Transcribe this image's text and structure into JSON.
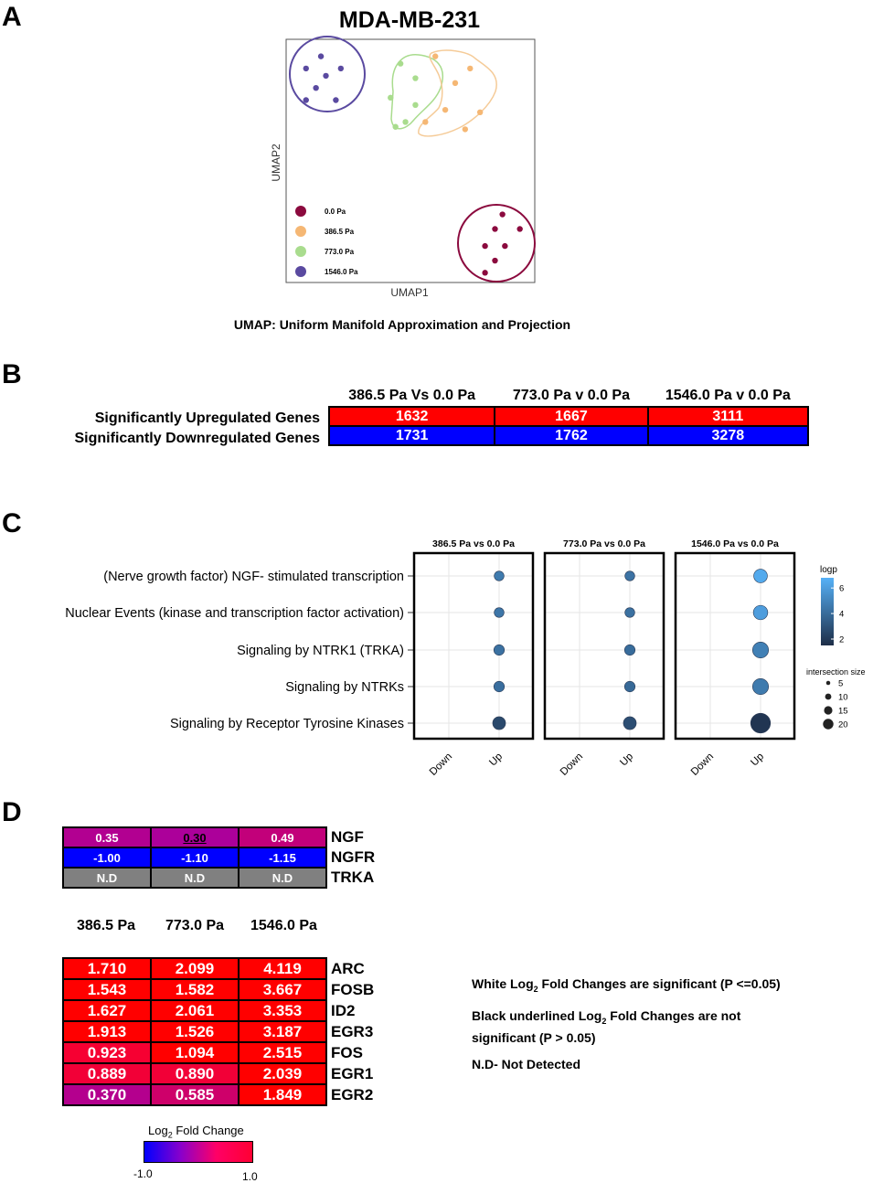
{
  "panels": {
    "a": "A",
    "b": "B",
    "c": "C",
    "d": "D"
  },
  "panel_a": {
    "title": "MDA-MB-231",
    "xlabel": "UMAP1",
    "ylabel": "UMAP2",
    "caption": "UMAP: Uniform Manifold Approximation and Projection",
    "legend": [
      {
        "label": "0.0 Pa",
        "color": "#8b0a3e"
      },
      {
        "label": "386.5 Pa",
        "color": "#f5b774"
      },
      {
        "label": "773.0 Pa",
        "color": "#a9dc8e"
      },
      {
        "label": "1546.0 Pa",
        "color": "#5a4aa0"
      }
    ]
  },
  "panel_b": {
    "columns": [
      "386.5 Pa Vs 0.0 Pa",
      "773.0 Pa v 0.0 Pa",
      "1546.0 Pa v 0.0 Pa"
    ],
    "rows": [
      {
        "label": "Significantly Upregulated Genes",
        "values": [
          "1632",
          "1667",
          "3111"
        ],
        "color": "#ff0000"
      },
      {
        "label": "Significantly Downregulated Genes",
        "values": [
          "1731",
          "1762",
          "3278"
        ],
        "color": "#0000ff"
      }
    ]
  },
  "chart_data": [
    {
      "type": "scatter",
      "title": "MDA-MB-231",
      "xlabel": "UMAP1",
      "ylabel": "UMAP2",
      "series": [
        {
          "name": "0.0 Pa",
          "points": [
            [
              0.87,
              0.28
            ],
            [
              0.84,
              0.22
            ],
            [
              0.94,
              0.22
            ],
            [
              0.8,
              0.15
            ],
            [
              0.88,
              0.15
            ],
            [
              0.84,
              0.09
            ],
            [
              0.8,
              0.04
            ]
          ]
        },
        {
          "name": "386.5 Pa",
          "points": [
            [
              0.6,
              0.93
            ],
            [
              0.74,
              0.88
            ],
            [
              0.68,
              0.82
            ],
            [
              0.64,
              0.71
            ],
            [
              0.78,
              0.7
            ],
            [
              0.56,
              0.66
            ],
            [
              0.72,
              0.63
            ]
          ]
        },
        {
          "name": "773.0 Pa",
          "points": [
            [
              0.46,
              0.9
            ],
            [
              0.52,
              0.84
            ],
            [
              0.42,
              0.76
            ],
            [
              0.52,
              0.73
            ],
            [
              0.48,
              0.66
            ],
            [
              0.44,
              0.64
            ]
          ]
        },
        {
          "name": "1546.0 Pa",
          "points": [
            [
              0.14,
              0.93
            ],
            [
              0.08,
              0.88
            ],
            [
              0.22,
              0.88
            ],
            [
              0.16,
              0.85
            ],
            [
              0.12,
              0.8
            ],
            [
              0.2,
              0.75
            ],
            [
              0.08,
              0.75
            ]
          ]
        }
      ]
    },
    {
      "type": "scatter",
      "title": "",
      "xlabel": "",
      "ylabel": "",
      "facets": [
        "386.5 Pa vs 0.0 Pa",
        "773.0 Pa vs 0.0 Pa",
        "1546.0 Pa vs 0.0 Pa"
      ],
      "x_categories": [
        "Down",
        "Up"
      ],
      "terms": [
        "(Nerve growth factor) NGF- stimulated transcription",
        "Nuclear Events (kinase and transcription factor activation)",
        "Signaling by NTRK1 (TRKA)",
        "Signaling by NTRKs",
        "Signaling by Receptor Tyrosine Kinases"
      ],
      "logp": [
        [
          4.6,
          4.4,
          4.2,
          4.1,
          2.6
        ],
        [
          4.3,
          4.2,
          4.0,
          3.9,
          2.8
        ],
        [
          6.5,
          6.0,
          4.8,
          4.6,
          1.8
        ]
      ],
      "intersection_size": [
        [
          8,
          8,
          9,
          9,
          12
        ],
        [
          8,
          8,
          9,
          9,
          12
        ],
        [
          13,
          14,
          16,
          16,
          21
        ]
      ],
      "color_legend": {
        "title": "logp",
        "ticks": [
          2,
          4,
          6
        ],
        "low": "#1e2e48",
        "high": "#56b1f7"
      },
      "size_legend": {
        "title": "intersection size",
        "ticks": [
          5,
          10,
          15,
          20
        ]
      }
    },
    {
      "type": "heatmap",
      "columns": [
        "386.5 Pa",
        "773.0 Pa",
        "1546.0 Pa"
      ],
      "top_rows": [
        {
          "gene": "NGF",
          "values": [
            0.35,
            0.3,
            0.49
          ],
          "labels": [
            "0.35",
            "0.30",
            "0.49"
          ],
          "significant": [
            true,
            false,
            true
          ]
        },
        {
          "gene": "NGFR",
          "values": [
            -1.0,
            -1.1,
            -1.15
          ],
          "labels": [
            "-1.00",
            "-1.10",
            "-1.15"
          ],
          "significant": [
            true,
            true,
            true
          ]
        },
        {
          "gene": "TRKA",
          "values": [
            null,
            null,
            null
          ],
          "labels": [
            "N.D",
            "N.D",
            "N.D"
          ],
          "significant": [
            true,
            true,
            true
          ]
        }
      ],
      "bottom_rows": [
        {
          "gene": "ARC",
          "values": [
            1.71,
            2.099,
            4.119
          ],
          "labels": [
            "1.710",
            "2.099",
            "4.119"
          ]
        },
        {
          "gene": "FOSB",
          "values": [
            1.543,
            1.582,
            3.667
          ],
          "labels": [
            "1.543",
            "1.582",
            "3.667"
          ]
        },
        {
          "gene": "ID2",
          "values": [
            1.627,
            2.061,
            3.353
          ],
          "labels": [
            "1.627",
            "2.061",
            "3.353"
          ]
        },
        {
          "gene": "EGR3",
          "values": [
            1.913,
            1.526,
            3.187
          ],
          "labels": [
            "1.913",
            "1.526",
            "3.187"
          ]
        },
        {
          "gene": "FOS",
          "values": [
            0.923,
            1.094,
            2.515
          ],
          "labels": [
            "0.923",
            "1.094",
            "2.515"
          ]
        },
        {
          "gene": "EGR1",
          "values": [
            0.889,
            0.89,
            2.039
          ],
          "labels": [
            "0.889",
            "0.890",
            "2.039"
          ]
        },
        {
          "gene": "EGR2",
          "values": [
            0.37,
            0.585,
            1.849
          ],
          "labels": [
            "0.370",
            "0.585",
            "1.849"
          ]
        }
      ],
      "colorbar": {
        "title_pre": "Log",
        "title_sub": "2",
        "title_post": " Fold Change",
        "min_label": "-1.0",
        "max_label": "1.0",
        "range": [
          -1.0,
          1.0
        ]
      },
      "nd_color": "#808080"
    }
  ],
  "notes": [
    {
      "pre": "White Log",
      "sub": "2",
      "post": " Fold Changes are significant (P <=0.05)"
    },
    {
      "pre": "Black underlined Log",
      "sub": "2",
      "post": " Fold Changes are not significant (P > 0.05)"
    },
    {
      "pre": "N.D- Not Detected",
      "sub": "",
      "post": ""
    }
  ]
}
